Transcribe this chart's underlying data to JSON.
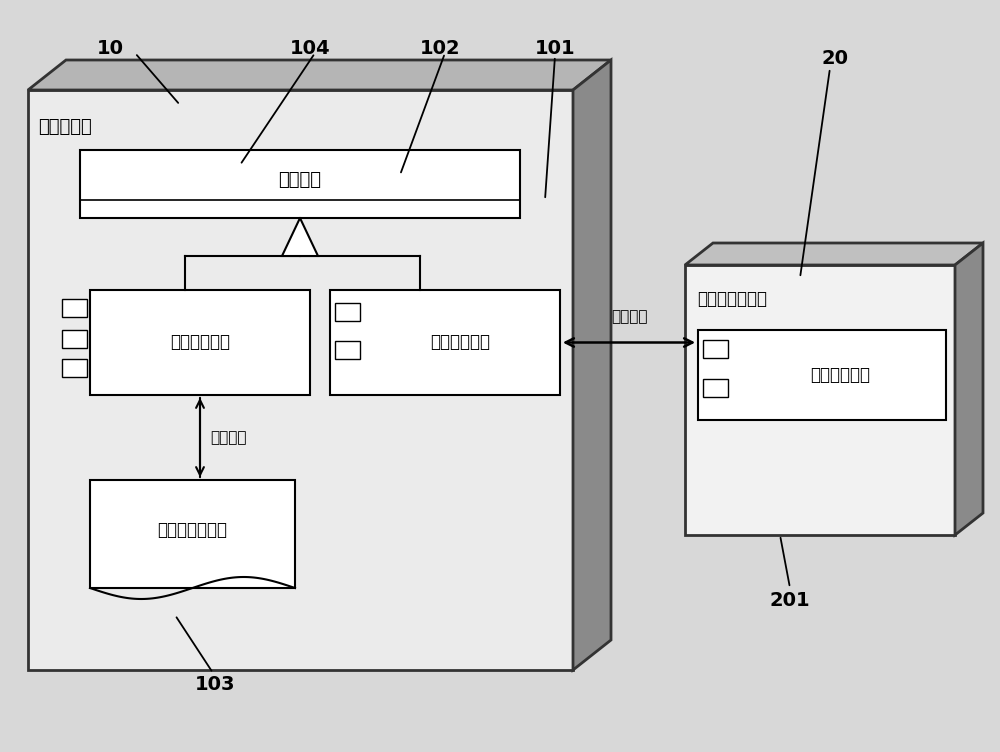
{
  "bg_color": "#d8d8d8",
  "label_10": "10",
  "label_104": "104",
  "label_102": "102",
  "label_101": "101",
  "label_20": "20",
  "label_201": "201",
  "label_103": "103",
  "text_doctor": "医生程控仪",
  "text_implant": "植入式医疗器械",
  "text_comm_interface": "通信接口",
  "text_cmd_parser": "指令解析组件",
  "text_first_comm": "第一通信模块",
  "text_second_comm": "第二通信模块",
  "text_virtual_file": "虚拟刺激器文件",
  "text_data_exchange1": "数据交互",
  "text_data_exchange2": "数据交互",
  "fig_width": 10.0,
  "fig_height": 7.52,
  "dpi": 100
}
